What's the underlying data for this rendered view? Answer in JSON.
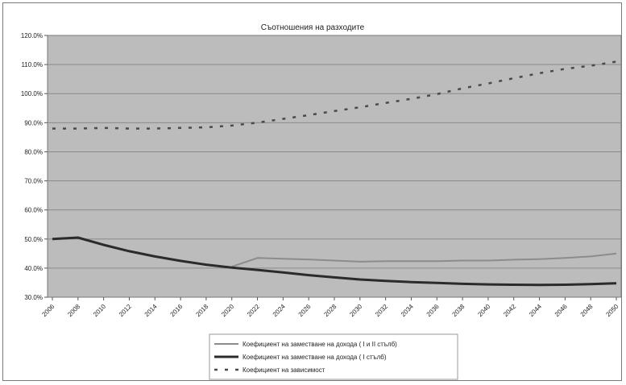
{
  "chart_data": {
    "type": "line",
    "title": "Съотношения на разходите",
    "xlabel": "",
    "ylabel": "",
    "x": [
      "2006",
      "2008",
      "2010",
      "2012",
      "2014",
      "2016",
      "2018",
      "2020",
      "2022",
      "2024",
      "2026",
      "2028",
      "2030",
      "2032",
      "2034",
      "2036",
      "2038",
      "2040",
      "2042",
      "2044",
      "2046",
      "2048",
      "2050"
    ],
    "ytick_labels": [
      "30.0%",
      "40.0%",
      "50.0%",
      "60.0%",
      "70.0%",
      "80.0%",
      "90.0%",
      "100.0%",
      "110.0%",
      "120.0%"
    ],
    "ylim": [
      30,
      120
    ],
    "grid": true,
    "legend_position": "bottom",
    "series": [
      {
        "name": "Коефициент на заместване на дохода ( I и II стълб)",
        "style": "solid-light",
        "color": "#8c8c8c",
        "values": [
          null,
          null,
          null,
          null,
          null,
          null,
          null,
          40.5,
          43.5,
          43.2,
          43.0,
          42.6,
          42.2,
          42.4,
          42.4,
          42.4,
          42.6,
          42.6,
          42.9,
          43.1,
          43.5,
          44.0,
          45.0
        ]
      },
      {
        "name": "Коефициент на заместване на дохода ( I стълб)",
        "style": "solid-dark",
        "color": "#2b2b2b",
        "values": [
          50.0,
          50.5,
          48.0,
          45.8,
          44.0,
          42.5,
          41.2,
          40.2,
          39.4,
          38.5,
          37.6,
          36.8,
          36.1,
          35.6,
          35.2,
          34.9,
          34.6,
          34.4,
          34.3,
          34.2,
          34.3,
          34.5,
          34.8
        ]
      },
      {
        "name": "Коефициент на зависимост",
        "style": "dashed",
        "color": "#4a4a4a",
        "values": [
          88.0,
          88.0,
          88.2,
          88.0,
          88.0,
          88.2,
          88.4,
          89.0,
          90.0,
          91.3,
          92.6,
          94.0,
          95.3,
          96.8,
          98.2,
          99.8,
          101.8,
          103.5,
          105.3,
          107.0,
          108.5,
          109.6,
          111.0
        ]
      }
    ]
  }
}
